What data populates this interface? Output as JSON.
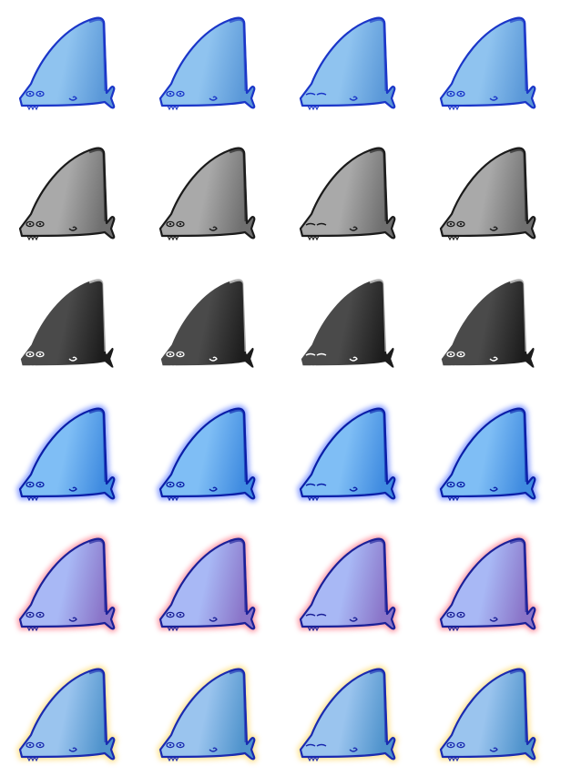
{
  "sprite_sheet": {
    "subject": "shark-fin-creature",
    "frame_variants": [
      "open-eyes",
      "open-eyes",
      "sleepy-eyes",
      "open-eyes"
    ],
    "rows": [
      {
        "style": "blue",
        "body_light": "#8fc3ef",
        "body_dark": "#5a98d8",
        "outline": "#1a35c8",
        "glow": null
      },
      {
        "style": "gray",
        "body_light": "#a9a9a9",
        "body_dark": "#6f6f6f",
        "outline": "#1a1a1a",
        "glow": null
      },
      {
        "style": "black",
        "body_light": "#4a4a4a",
        "body_dark": "#1c1c1c",
        "outline": "#ffffff",
        "glow": null
      },
      {
        "style": "blue-glow",
        "body_light": "#7fbef5",
        "body_dark": "#3f8be0",
        "outline": "#0a1ea8",
        "glow": "#5f7cff"
      },
      {
        "style": "red-glow",
        "body_light": "#a8b8f5",
        "body_dark": "#8a74c8",
        "outline": "#1a2098",
        "glow": "#ff7a8a"
      },
      {
        "style": "yellow-glow",
        "body_light": "#9ac4ee",
        "body_dark": "#4f93cc",
        "outline": "#1a2ab0",
        "glow": "#ffd96a"
      }
    ]
  }
}
